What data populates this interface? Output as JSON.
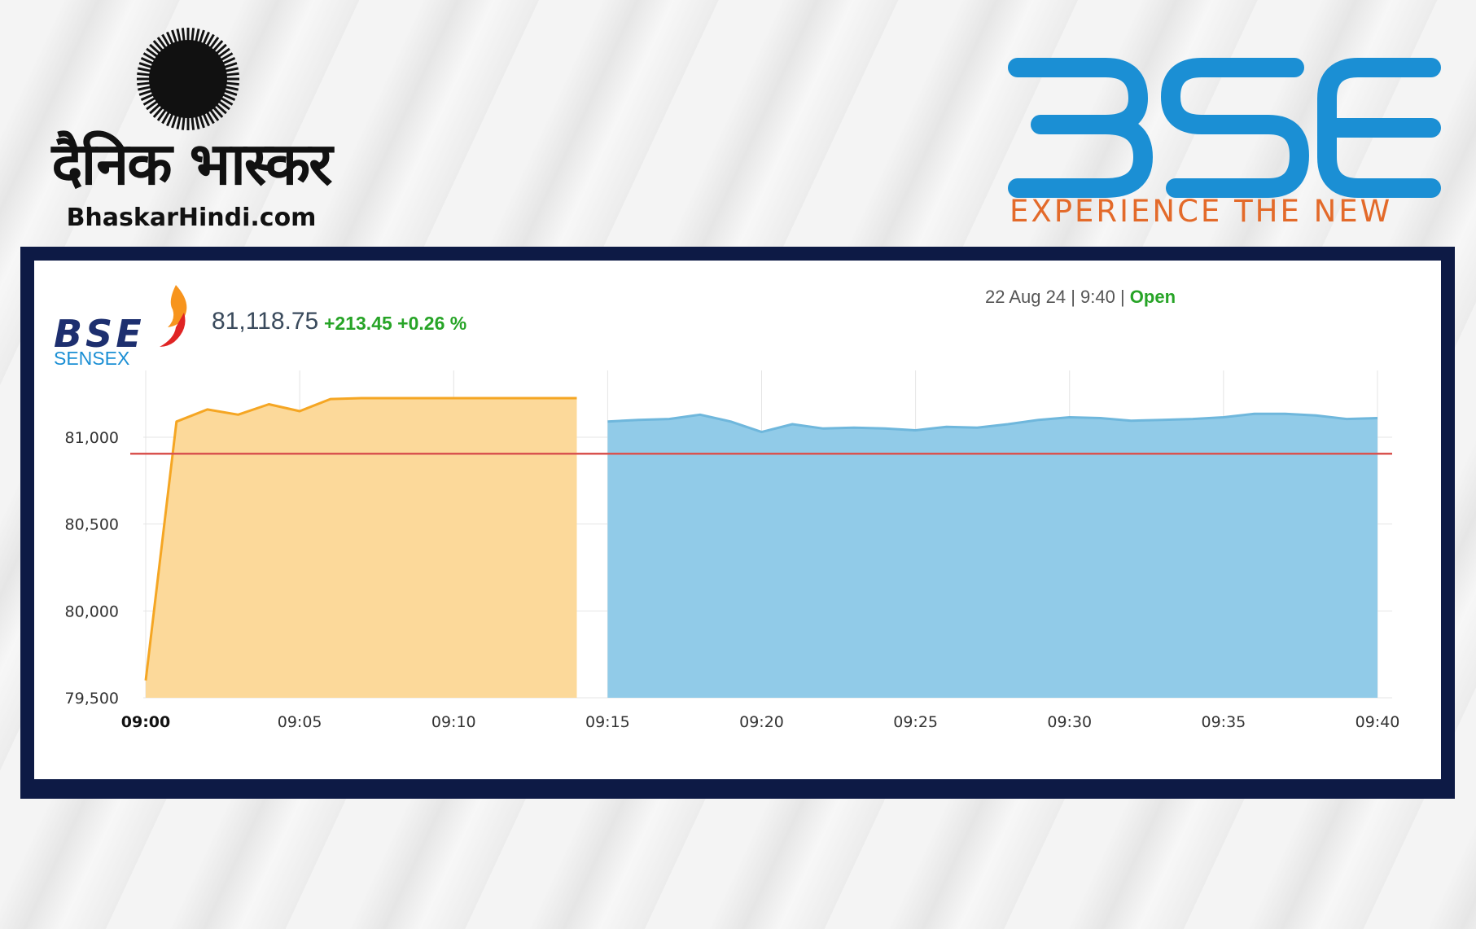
{
  "branding": {
    "left_logo_name": "दैनिक भास्कर",
    "left_logo_url": "BhaskarHindi.com",
    "right_logo_name": "BSE",
    "right_logo_tagline": "EXPERIENCE THE NEW",
    "sensex_logo_top": "BSE",
    "sensex_logo_bottom": "SENSEX"
  },
  "header": {
    "index_value": "81,118.75",
    "index_change": "+213.45 +0.26 %",
    "status_date": "22 Aug 24 | 9:40 | ",
    "status_state": "Open"
  },
  "colors": {
    "pre_open_line": "#f5a623",
    "pre_open_fill": "#fcd99a",
    "session_line": "#6fb7dc",
    "session_fill": "#91cbe8",
    "previous_close_line": "#d9534f",
    "frame": "#0d1a45",
    "bse_blue": "#1b8fd4",
    "tagline_orange": "#e36a2a"
  },
  "chart_data": {
    "type": "area",
    "title": "",
    "xlabel": "",
    "ylabel": "",
    "x_ticks": [
      "09:00",
      "09:05",
      "09:10",
      "09:15",
      "09:20",
      "09:25",
      "09:30",
      "09:35",
      "09:40"
    ],
    "y_ticks": [
      "79,500",
      "80,000",
      "80,500",
      "81,000"
    ],
    "xlim": [
      "09:00",
      "09:40"
    ],
    "ylim": [
      79500,
      81500
    ],
    "reference_line": 80905,
    "grid": true,
    "series": [
      {
        "x": [
          "09:00",
          "09:01",
          "09:02",
          "09:03",
          "09:04",
          "09:05",
          "09:06",
          "09:07",
          "09:08",
          "09:09",
          "09:10",
          "09:11",
          "09:12",
          "09:13",
          "09:14"
        ],
        "y": [
          79600,
          81090,
          81160,
          81130,
          81190,
          81150,
          81220,
          81225,
          81225,
          81225,
          81225,
          81225,
          81225,
          81225,
          81225
        ]
      },
      {
        "x": [
          "09:15",
          "09:16",
          "09:17",
          "09:18",
          "09:19",
          "09:20",
          "09:21",
          "09:22",
          "09:23",
          "09:24",
          "09:25",
          "09:26",
          "09:27",
          "09:28",
          "09:29",
          "09:30",
          "09:31",
          "09:32",
          "09:33",
          "09:34",
          "09:35",
          "09:36",
          "09:37",
          "09:38",
          "09:39",
          "09:40"
        ],
        "y": [
          81090,
          81100,
          81105,
          81130,
          81090,
          81030,
          81075,
          81050,
          81055,
          81050,
          81040,
          81060,
          81055,
          81075,
          81100,
          81115,
          81110,
          81095,
          81100,
          81105,
          81115,
          81135,
          81135,
          81125,
          81105,
          81110
        ]
      }
    ]
  }
}
